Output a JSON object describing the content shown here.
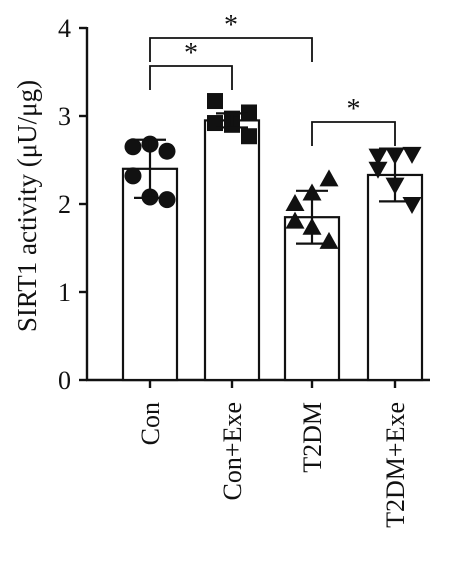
{
  "chart_data": {
    "type": "bar",
    "title": "",
    "xlabel": "",
    "ylabel": "SIRT1 activity (μU/μg)",
    "ylim": [
      0,
      4
    ],
    "yticks": [
      "0",
      "1",
      "2",
      "3",
      "4"
    ],
    "categories": [
      "Con",
      "Con+Exe",
      "T2DM",
      "T2DM+Exe"
    ],
    "values": [
      2.4,
      2.95,
      1.85,
      2.33
    ],
    "error": [
      0.33,
      0.08,
      0.3,
      0.3
    ],
    "markers": [
      "circle",
      "square",
      "triangle-up",
      "triangle-down"
    ],
    "points": [
      [
        2.65,
        2.68,
        2.6,
        2.32,
        2.08,
        2.05
      ],
      [
        2.92,
        2.97,
        3.04,
        3.17,
        2.9,
        2.77
      ],
      [
        2.0,
        2.12,
        2.28,
        1.8,
        1.73,
        1.57
      ],
      [
        2.55,
        2.56,
        2.57,
        2.4,
        2.22,
        2.0
      ]
    ],
    "significance": [
      {
        "from": 0,
        "to": 1,
        "label": "*"
      },
      {
        "from": 0,
        "to": 2,
        "label": "*"
      },
      {
        "from": 2,
        "to": 3,
        "label": "*"
      }
    ],
    "grid": false,
    "colors": {
      "bar_fill": "#ffffff",
      "stroke": "#111111",
      "points": "#111111"
    }
  }
}
